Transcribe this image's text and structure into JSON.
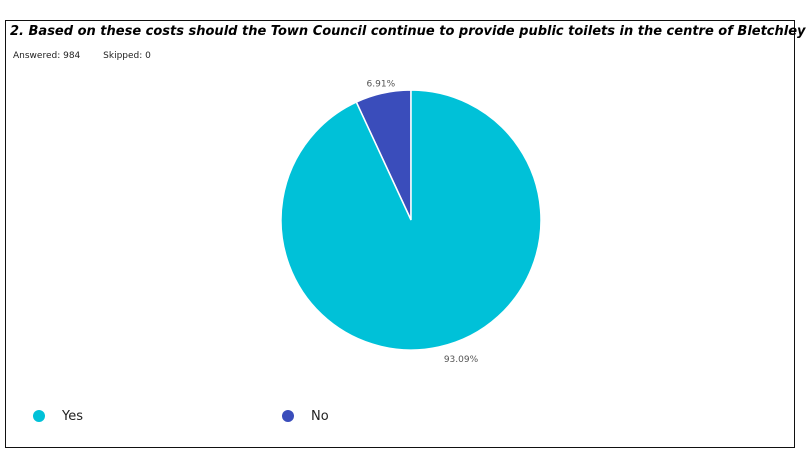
{
  "question": {
    "title": "2. Based on these costs should the Town Council continue to provide public toilets in the centre of Bletchley?",
    "answered_label": "Answered: 984",
    "skipped_label": "Skipped: 0"
  },
  "colors": {
    "yes": "#00C1D8",
    "no": "#3A4DBB"
  },
  "chart_data": {
    "type": "pie",
    "title": "2. Based on these costs should the Town Council continue to provide public toilets in the centre of Bletchley?",
    "categories": [
      "Yes",
      "No"
    ],
    "values": [
      93.09,
      6.91
    ],
    "labels": [
      "93.09%",
      "6.91%"
    ],
    "colors": [
      "#00C1D8",
      "#3A4DBB"
    ],
    "legend_position": "bottom-left"
  }
}
